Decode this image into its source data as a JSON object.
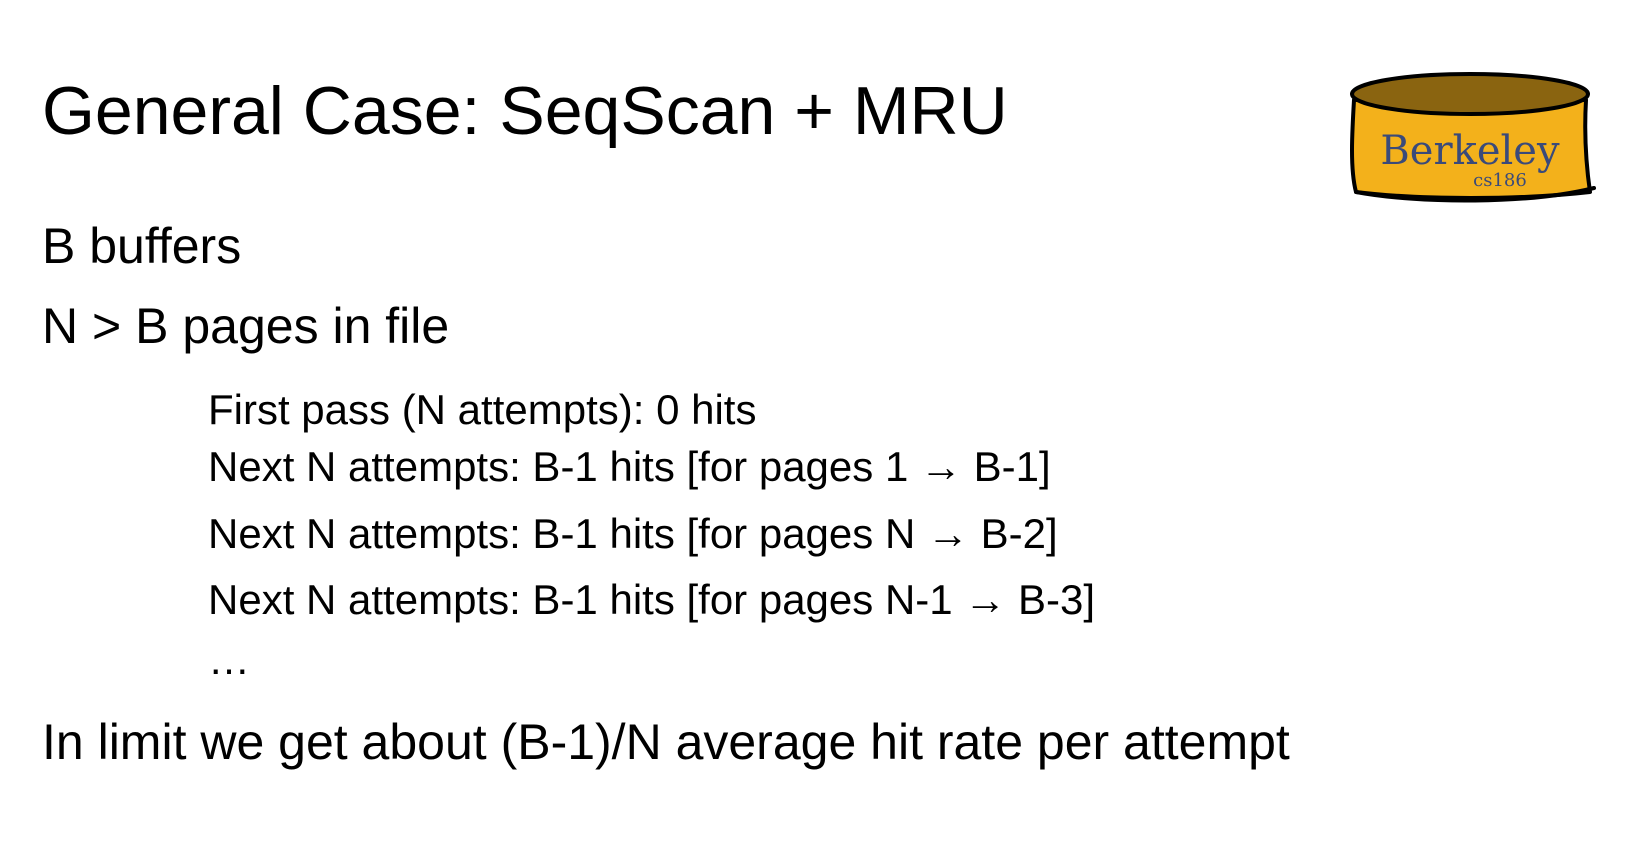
{
  "slide": {
    "title": "General Case: SeqScan + MRU",
    "bullets_top": [
      "B buffers",
      "N > B pages in file"
    ],
    "sub_items": [
      "First pass (N attempts): 0 hits",
      "Next N attempts: B-1 hits [for pages 1 → B-1]",
      "Next N attempts: B-1 hits [for pages N → B-2]",
      "Next N attempts: B-1 hits [for pages N-1 → B-3]",
      "…"
    ],
    "conclusion": "In limit we get about (B-1)/N average hit rate per attempt"
  },
  "logo": {
    "text": "Berkeley",
    "subtext": "cs186",
    "colors": {
      "body": "#F3B11B",
      "top": "#8A6410",
      "outline": "#000000",
      "text": "#3A4A7A"
    }
  }
}
